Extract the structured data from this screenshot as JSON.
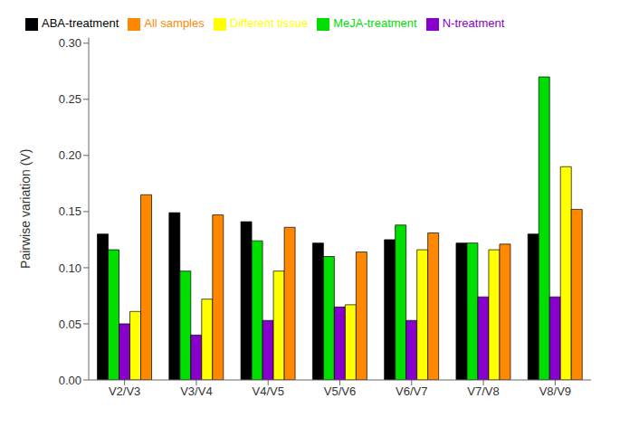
{
  "chart_data": {
    "type": "bar",
    "categories": [
      "V2/V3",
      "V3/V4",
      "V4/V5",
      "V5/V6",
      "V6/V7",
      "V7/V8",
      "V8/V9"
    ],
    "series": [
      {
        "name": "ABA-treatment",
        "color": "#000000",
        "values": [
          0.13,
          0.149,
          0.141,
          0.122,
          0.125,
          0.122,
          0.13
        ]
      },
      {
        "name": "MeJA-treatment",
        "color": "#00dd00",
        "values": [
          0.116,
          0.097,
          0.124,
          0.11,
          0.138,
          0.122,
          0.27
        ]
      },
      {
        "name": "N-treatment",
        "color": "#8800cc",
        "values": [
          0.05,
          0.04,
          0.053,
          0.065,
          0.053,
          0.074,
          0.074
        ]
      },
      {
        "name": "Different tissue",
        "color": "#ffff00",
        "values": [
          0.061,
          0.072,
          0.097,
          0.067,
          0.116,
          0.116,
          0.19
        ]
      },
      {
        "name": "All samples",
        "color": "#ff8800",
        "values": [
          0.165,
          0.147,
          0.136,
          0.114,
          0.131,
          0.121,
          0.152
        ]
      }
    ],
    "ylabel": "Pairwise variation (V)",
    "ylim": [
      0.0,
      0.305
    ],
    "yticks": [
      {
        "value": 0.0,
        "label": "0.00"
      },
      {
        "value": 0.05,
        "label": "0.05"
      },
      {
        "value": 0.1,
        "label": "0.10"
      },
      {
        "value": 0.15,
        "label": "0.15"
      },
      {
        "value": 0.2,
        "label": "0.20"
      },
      {
        "value": 0.25,
        "label": "0.25"
      },
      {
        "value": 0.3,
        "label": "0.30"
      }
    ],
    "grid": false,
    "legend": "upper left"
  }
}
